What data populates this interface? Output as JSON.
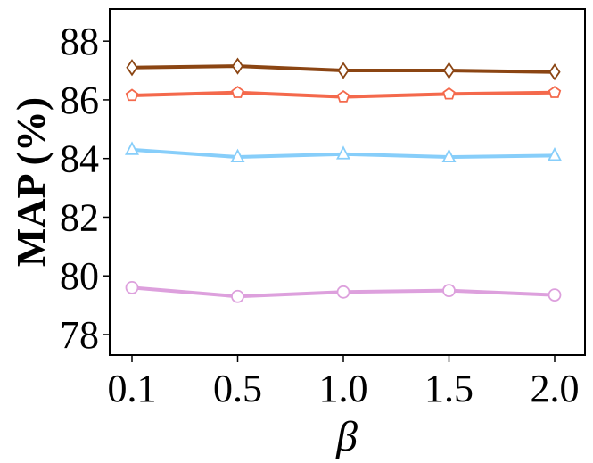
{
  "chart_data": {
    "type": "line",
    "xlabel": "β",
    "ylabel": "MAP (%)",
    "x": [
      "0.1",
      "0.5",
      "1.0",
      "1.5",
      "2.0"
    ],
    "ylim": [
      77.3,
      89.1
    ],
    "yticks": [
      "78",
      "80",
      "82",
      "84",
      "86",
      "88"
    ],
    "grid": false,
    "legend": "none",
    "series": [
      {
        "values": [
          87.1,
          87.15,
          87.0,
          87.0,
          86.95
        ],
        "color": "#8B4513",
        "marker": "diamond"
      },
      {
        "values": [
          86.15,
          86.25,
          86.1,
          86.2,
          86.25
        ],
        "color": "#F4694C",
        "marker": "pentagon"
      },
      {
        "values": [
          84.3,
          84.05,
          84.15,
          84.05,
          84.1
        ],
        "color": "#87CEFA",
        "marker": "triangle"
      },
      {
        "values": [
          79.6,
          79.3,
          79.45,
          79.5,
          79.35
        ],
        "color": "#DDA0DD",
        "marker": "circle"
      }
    ]
  }
}
